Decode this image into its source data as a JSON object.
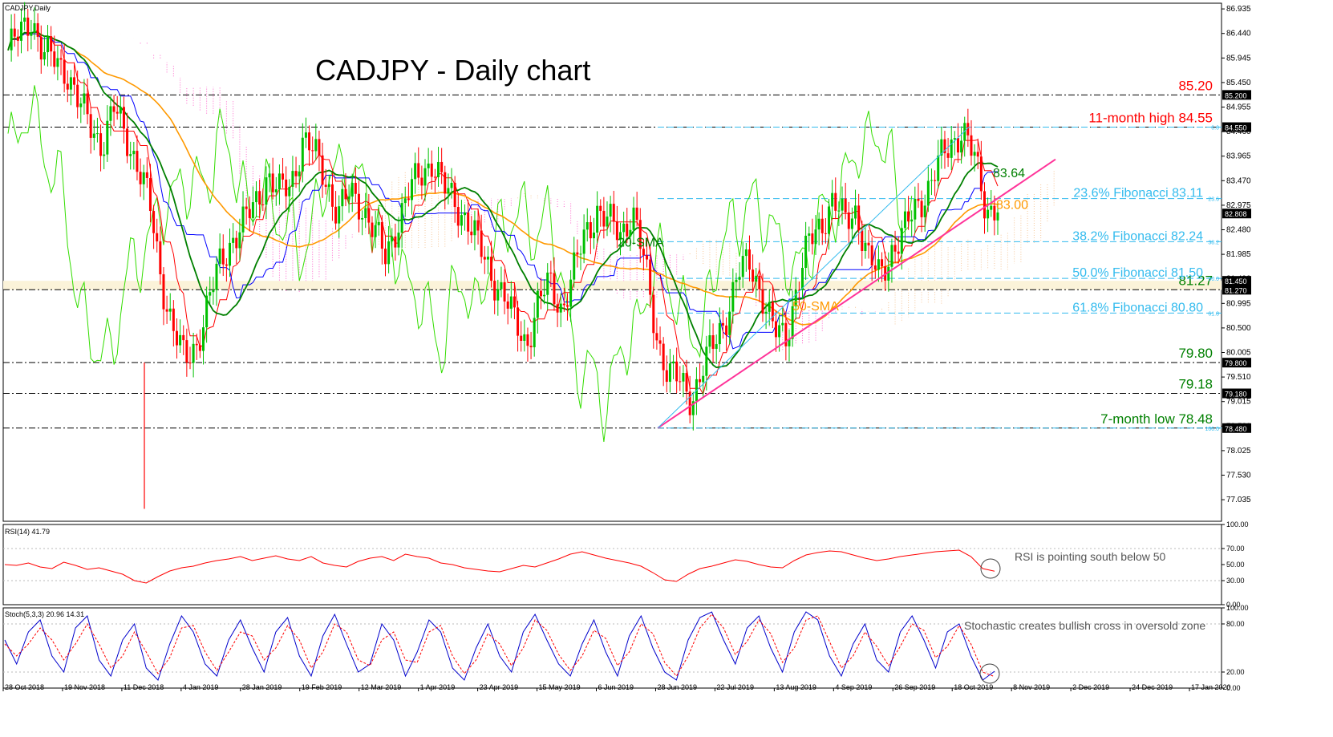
{
  "title": "CADJPY - Daily chart",
  "symbol_label": "CADJPY,Daily",
  "colors": {
    "bull": "#00c000",
    "bear": "#ff0000",
    "ma20": "#008000",
    "ma50": "#ff9900",
    "tenkan": "#ff0000",
    "kijun": "#0000ff",
    "chikou": "#33dd00",
    "cloud": "#ff66cc",
    "fib": "#33bbee",
    "trendline": "#ff3399",
    "rsi": "#ff0000",
    "stoch_main": "#0000cc",
    "stoch_signal": "#ff0000"
  },
  "chart_data": [
    {
      "type": "candlestick",
      "panel": "price",
      "ylim": [
        76.6,
        87.05
      ],
      "y_ticks": [
        "86.935",
        "86.440",
        "85.945",
        "85.450",
        "84.955",
        "84.460",
        "83.965",
        "83.470",
        "82.975",
        "82.480",
        "81.985",
        "81.490",
        "80.995",
        "80.500",
        "80.005",
        "79.510",
        "79.015",
        "78.520",
        "78.025",
        "77.530",
        "77.035"
      ],
      "x_ticks": [
        "28 Oct 2018",
        "19 Nov 2018",
        "11 Dec 2018",
        "4 Jan 2019",
        "28 Jan 2019",
        "19 Feb 2019",
        "12 Mar 2019",
        "1 Apr 2019",
        "23 Apr 2019",
        "15 May 2019",
        "6 Jun 2019",
        "28 Jun 2019",
        "22 Jul 2019",
        "13 Aug 2019",
        "4 Sep 2019",
        "26 Sep 2019",
        "18 Oct 2019",
        "8 Nov 2019",
        "2 Dec 2019",
        "24 Dec 2019",
        "17 Jan 2020"
      ],
      "price_labels": [
        {
          "value": 85.2,
          "text": "85.200"
        },
        {
          "value": 84.55,
          "text": "84.550"
        },
        {
          "value": 82.808,
          "text": "82.808"
        },
        {
          "value": 81.45,
          "text": "81.450"
        },
        {
          "value": 81.27,
          "text": "81.270"
        },
        {
          "value": 79.8,
          "text": "79.800"
        },
        {
          "value": 79.18,
          "text": "79.180"
        },
        {
          "value": 78.48,
          "text": "78.480"
        }
      ],
      "levels": [
        {
          "value": 85.2,
          "text": "85.20",
          "color": "#ff0000"
        },
        {
          "value": 84.55,
          "text": "11-month high 84.55",
          "color": "#ff0000"
        },
        {
          "value": 81.27,
          "text": "81.27",
          "color": "#008000"
        },
        {
          "value": 79.8,
          "text": "79.80",
          "color": "#008000"
        },
        {
          "value": 79.18,
          "text": "79.18",
          "color": "#008000"
        },
        {
          "value": 78.48,
          "text": "7-month low 78.48",
          "color": "#008000"
        }
      ],
      "fibonacci": [
        {
          "value": 84.55,
          "level": "0.0",
          "text": ""
        },
        {
          "value": 83.11,
          "level": "23.6",
          "text": "23.6% Fibonacci 83.11"
        },
        {
          "value": 82.24,
          "level": "38.2",
          "text": "38.2% Fibonacci 82.24"
        },
        {
          "value": 81.5,
          "level": "50.0",
          "text": "50.0% Fibonacci 81.50"
        },
        {
          "value": 80.8,
          "level": "61.8",
          "text": "61.8% Fibonacci 80.80"
        },
        {
          "value": 78.48,
          "level": "100.0",
          "text": ""
        }
      ],
      "annotations": [
        {
          "text": "83.64",
          "value": 83.64,
          "color": "#008000"
        },
        {
          "text": "83.00",
          "value": 83.0,
          "color": "#ff9900"
        },
        {
          "text": "20-SMA",
          "value": 82.24,
          "color": "#008000"
        },
        {
          "text": "50-SMA",
          "value": 80.95,
          "color": "#ff9900"
        }
      ],
      "series": [
        {
          "name": "20-SMA",
          "color": "#008000"
        },
        {
          "name": "50-SMA",
          "color": "#ff9900"
        }
      ],
      "close_path": [
        86.1,
        86.4,
        86.8,
        86.0,
        85.9,
        85.7,
        85.0,
        84.6,
        84.2,
        84.9,
        84.4,
        83.8,
        83.0,
        81.5,
        80.5,
        79.8,
        80.2,
        81.0,
        81.8,
        82.3,
        82.6,
        83.0,
        83.6,
        83.2,
        83.4,
        84.3,
        84.0,
        83.5,
        82.8,
        83.2,
        83.0,
        82.5,
        81.9,
        82.6,
        83.2,
        83.6,
        83.9,
        83.3,
        83.0,
        82.7,
        82.1,
        81.6,
        81.2,
        80.6,
        80.2,
        81.0,
        81.4,
        80.9,
        81.6,
        82.4,
        82.9,
        82.6,
        82.4,
        82.9,
        81.8,
        80.4,
        79.6,
        79.4,
        79.1,
        79.7,
        80.2,
        80.8,
        81.6,
        81.8,
        81.2,
        80.4,
        80.3,
        81.4,
        82.2,
        82.6,
        83.1,
        82.6,
        82.9,
        81.9,
        81.5,
        82.1,
        82.4,
        82.9,
        83.3,
        83.8,
        84.2,
        84.55,
        83.9,
        82.9,
        83.0
      ]
    },
    {
      "type": "line",
      "panel": "rsi",
      "indicator": "RSI(14) 41.79",
      "ylim": [
        0,
        100
      ],
      "y_ticks": [
        "100.00",
        "70.00",
        "50.00",
        "30.00",
        "0.00"
      ],
      "annotation": "RSI is pointing south below 50",
      "values": [
        50,
        49,
        52,
        47,
        45,
        53,
        49,
        44,
        46,
        42,
        38,
        30,
        27,
        35,
        42,
        46,
        48,
        52,
        55,
        57,
        60,
        55,
        58,
        61,
        57,
        55,
        60,
        52,
        49,
        47,
        54,
        58,
        60,
        55,
        63,
        60,
        58,
        52,
        50,
        46,
        44,
        42,
        41,
        45,
        49,
        47,
        52,
        57,
        63,
        66,
        62,
        58,
        55,
        52,
        48,
        40,
        31,
        29,
        38,
        45,
        48,
        52,
        56,
        54,
        50,
        47,
        46,
        55,
        62,
        65,
        67,
        66,
        62,
        58,
        55,
        57,
        60,
        62,
        64,
        66,
        67,
        68,
        60,
        45,
        41.79
      ]
    },
    {
      "type": "line",
      "panel": "stochastic",
      "indicator": "Stoch(5,3,3) 20.96 14.31",
      "ylim": [
        0,
        100
      ],
      "y_ticks": [
        "100.00",
        "80.00",
        "20.00",
        "0.00"
      ],
      "annotation": "Stochastic creates bullish cross in oversold zone",
      "series": [
        {
          "name": "main",
          "values": [
            60,
            30,
            70,
            85,
            40,
            20,
            75,
            90,
            35,
            15,
            60,
            80,
            25,
            10,
            55,
            90,
            70,
            30,
            15,
            60,
            85,
            50,
            20,
            70,
            88,
            40,
            15,
            65,
            92,
            55,
            20,
            30,
            80,
            60,
            15,
            45,
            85,
            70,
            25,
            10,
            50,
            80,
            40,
            20,
            70,
            92,
            60,
            30,
            15,
            55,
            85,
            45,
            15,
            65,
            90,
            50,
            20,
            10,
            60,
            88,
            95,
            60,
            30,
            75,
            90,
            50,
            20,
            70,
            95,
            85,
            40,
            15,
            55,
            80,
            35,
            20,
            70,
            90,
            60,
            25,
            70,
            80,
            40,
            10,
            20.96
          ]
        },
        {
          "name": "signal",
          "values": [
            55,
            40,
            55,
            75,
            60,
            35,
            55,
            80,
            55,
            25,
            40,
            70,
            45,
            18,
            38,
            75,
            78,
            45,
            22,
            45,
            70,
            65,
            35,
            50,
            78,
            60,
            25,
            45,
            80,
            70,
            35,
            28,
            60,
            70,
            35,
            32,
            70,
            78,
            40,
            18,
            35,
            68,
            55,
            28,
            50,
            85,
            72,
            42,
            22,
            40,
            72,
            62,
            28,
            45,
            80,
            68,
            32,
            15,
            40,
            75,
            92,
            75,
            42,
            58,
            85,
            68,
            32,
            50,
            85,
            90,
            58,
            25,
            40,
            70,
            52,
            28,
            52,
            80,
            72,
            38,
            52,
            78,
            55,
            20,
            14.31
          ]
        }
      ]
    }
  ]
}
